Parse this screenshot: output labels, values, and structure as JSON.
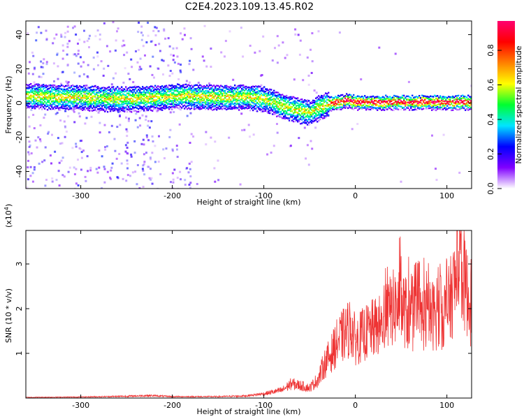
{
  "title": "C2E4.2023.109.13.45.R02",
  "chart_data": [
    {
      "type": "heatmap",
      "xlabel": "Height of straight line (km)",
      "ylabel": "Frequency (Hz)",
      "xlim": [
        -360,
        127
      ],
      "ylim": [
        -50,
        48
      ],
      "xticks": [
        -300,
        -200,
        -100,
        0,
        100
      ],
      "yticks": [
        -40,
        -20,
        0,
        20,
        40
      ],
      "colorbar": {
        "label": "Normalized spectral amplitude",
        "range": [
          0,
          0.97
        ],
        "ticks": [
          0.0,
          0.2,
          0.4,
          0.6,
          0.8
        ],
        "colors": [
          "#ffffff",
          "#8000ff",
          "#0000ff",
          "#00e5ff",
          "#00ff30",
          "#ffff00",
          "#ff8000",
          "#ff0000",
          "#ff0070"
        ]
      },
      "ridge": {
        "x": [
          -360,
          -330,
          -300,
          -270,
          -240,
          -210,
          -190,
          -170,
          -150,
          -120,
          -100,
          -85,
          -75,
          -60,
          -50,
          -40,
          -30,
          -20,
          -10,
          0,
          50,
          127
        ],
        "frequency": [
          5,
          4,
          4,
          3,
          3,
          4,
          5,
          4,
          4,
          4,
          3,
          0,
          -2,
          -4,
          -5,
          -2,
          0,
          1,
          2,
          1,
          1,
          1
        ]
      }
    },
    {
      "type": "line",
      "xlabel": "Height of straight line (km)",
      "ylabel": "SNR (10 * v/v)",
      "y_multiplier": "(x10",
      "y_multiplier_exp": "4",
      "y_multiplier_close": ")",
      "xlim": [
        -360,
        127
      ],
      "ylim": [
        0,
        3.75
      ],
      "xticks": [
        -300,
        -200,
        -100,
        0,
        100
      ],
      "yticks": [
        1,
        2,
        3
      ],
      "color": "#ee3333",
      "envelope": {
        "x": [
          -360,
          -300,
          -250,
          -225,
          -200,
          -150,
          -120,
          -100,
          -80,
          -70,
          -60,
          -50,
          -40,
          -35,
          -30,
          -25,
          -20,
          -15,
          -10,
          -5,
          0,
          10,
          20,
          30,
          40,
          50,
          60,
          80,
          100,
          110,
          115,
          127
        ],
        "y": [
          0.02,
          0.03,
          0.05,
          0.07,
          0.04,
          0.04,
          0.06,
          0.12,
          0.22,
          0.4,
          0.35,
          0.28,
          0.55,
          0.9,
          1.1,
          1.3,
          1.55,
          1.7,
          1.85,
          2.0,
          1.6,
          1.8,
          1.95,
          2.05,
          2.5,
          2.6,
          2.2,
          2.3,
          2.4,
          3.3,
          3.7,
          2.4
        ]
      }
    }
  ]
}
